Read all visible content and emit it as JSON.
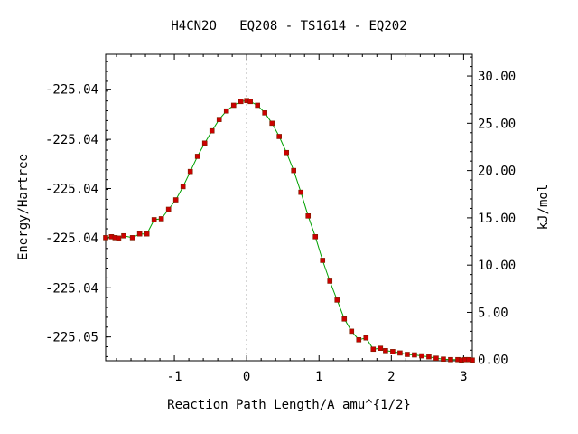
{
  "chart_data": {
    "type": "line",
    "title": "H4CN2O   EQ208 - TS1614 - EQ202",
    "xlabel": "Reaction Path Length/A amu^{1/2}",
    "ylabel": "Energy/Hartree",
    "y2label": "kJ/mol",
    "xlim": [
      -1.95,
      3.12
    ],
    "x_ticks": [
      -1,
      0,
      1,
      2,
      3
    ],
    "y2lim": [
      -0.12,
      32.3
    ],
    "y2_ticks": [
      0,
      5,
      10,
      15,
      20,
      25,
      30
    ],
    "y2_tick_labels": [
      "0.00",
      "5.00",
      "10.00",
      "15.00",
      "20.00",
      "25.00",
      "30.00"
    ],
    "y_tick_labels": [
      "-225.05",
      "-225.04",
      "-225.04",
      "-225.04",
      "-225.04",
      "-225.04"
    ],
    "y_tick_values_kjmol": [
      2.4,
      7.6,
      12.9,
      18.1,
      23.3,
      28.6
    ],
    "ts_x": 0,
    "line_color": "#00a000",
    "marker_color": "#cc0000",
    "series": [
      {
        "x": [
          -1.95,
          -1.87,
          -1.82,
          -1.77,
          -1.7,
          -1.58,
          -1.48,
          -1.38,
          -1.28,
          -1.18,
          -1.08,
          -0.98,
          -0.88,
          -0.78,
          -0.68,
          -0.58,
          -0.48,
          -0.38,
          -0.28,
          -0.18,
          -0.08,
          0.0,
          0.05,
          0.15,
          0.25,
          0.35,
          0.45,
          0.55,
          0.65,
          0.75,
          0.85,
          0.95,
          1.05,
          1.15,
          1.25,
          1.35,
          1.45,
          1.55,
          1.65,
          1.75,
          1.85,
          1.92,
          2.02,
          2.12,
          2.22,
          2.32,
          2.42,
          2.52,
          2.62,
          2.72,
          2.82,
          2.92,
          2.97,
          3.02,
          3.07,
          3.12
        ],
        "y": [
          12.9,
          13.0,
          12.9,
          12.85,
          13.1,
          12.9,
          13.3,
          13.3,
          14.8,
          14.9,
          15.9,
          16.9,
          18.3,
          19.9,
          21.5,
          22.9,
          24.2,
          25.4,
          26.3,
          26.9,
          27.3,
          27.4,
          27.3,
          26.9,
          26.1,
          25.0,
          23.6,
          21.9,
          20.0,
          17.7,
          15.2,
          13.0,
          10.5,
          8.3,
          6.3,
          4.3,
          3.0,
          2.1,
          2.3,
          1.1,
          1.2,
          0.95,
          0.85,
          0.7,
          0.55,
          0.5,
          0.4,
          0.3,
          0.15,
          0.05,
          0.0,
          0.0,
          -0.05,
          0.0,
          0.0,
          -0.05
        ]
      }
    ]
  }
}
